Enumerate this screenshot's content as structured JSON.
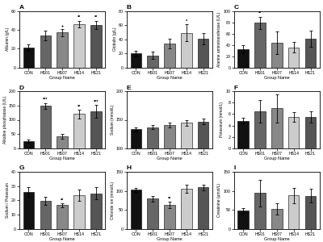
{
  "chart_data": [
    {
      "type": "bar",
      "title": "A",
      "x_label": "Group Name",
      "y_label": "Albumin (g/L)",
      "categories": [
        "CON",
        "HS01",
        "HS07",
        "HS14",
        "HS21"
      ],
      "values": [
        21.0,
        34.0,
        37.0,
        46.0,
        45.0
      ],
      "errors": [
        3.5,
        5.0,
        3.5,
        3.5,
        4.5
      ],
      "colors": [
        "#111111",
        "#666666",
        "#888888",
        "#cccccc",
        "#555555"
      ],
      "ylim": [
        0,
        60
      ],
      "yticks": [
        0,
        20,
        40,
        60
      ],
      "annotations": [
        {
          "category": "HS07",
          "text": "+"
        },
        {
          "category": "HS14",
          "text": "**"
        },
        {
          "category": "HS21",
          "text": "**"
        }
      ]
    },
    {
      "type": "bar",
      "title": "B",
      "x_label": "Group Name",
      "y_label": "Globulin (g/L)",
      "categories": [
        "CON",
        "HS01",
        "HS07",
        "HS14",
        "HS21"
      ],
      "values": [
        20.0,
        17.0,
        34.0,
        49.0,
        41.0
      ],
      "errors": [
        4.0,
        5.0,
        7.0,
        12.0,
        8.0
      ],
      "colors": [
        "#111111",
        "#666666",
        "#888888",
        "#cccccc",
        "#555555"
      ],
      "ylim": [
        0,
        80
      ],
      "yticks": [
        0,
        20,
        40,
        60,
        80
      ],
      "annotations": [
        {
          "category": "HS14",
          "text": "*"
        }
      ]
    },
    {
      "type": "bar",
      "title": "C",
      "x_label": "Group Name",
      "y_label": "Alanine aminotransferase (U/L)",
      "categories": [
        "CON",
        "HS01",
        "HS07",
        "HS14",
        "HS21"
      ],
      "values": [
        33.0,
        79.0,
        44.0,
        36.0,
        51.0
      ],
      "errors": [
        7.0,
        11.0,
        20.0,
        9.0,
        14.0
      ],
      "colors": [
        "#111111",
        "#666666",
        "#888888",
        "#cccccc",
        "#555555"
      ],
      "ylim": [
        0,
        100
      ],
      "yticks": [
        0,
        20,
        40,
        60,
        80,
        100
      ],
      "annotations": [
        {
          "category": "HS01",
          "text": "**"
        }
      ]
    },
    {
      "type": "bar",
      "title": "D",
      "x_label": "Group Name",
      "y_label": "Alkaline phosphatase (U/L)",
      "categories": [
        "CON",
        "HS01",
        "HS07",
        "HS14",
        "HS21"
      ],
      "values": [
        25.0,
        149.0,
        42.0,
        120.0,
        130.0
      ],
      "errors": [
        5.0,
        10.0,
        8.0,
        16.0,
        22.0
      ],
      "colors": [
        "#111111",
        "#666666",
        "#888888",
        "#cccccc",
        "#555555"
      ],
      "ylim": [
        0,
        200
      ],
      "yticks": [
        0,
        50,
        100,
        150,
        200
      ],
      "annotations": [
        {
          "category": "HS01",
          "text": "***"
        },
        {
          "category": "HS14",
          "text": "**"
        },
        {
          "category": "HS21",
          "text": "***"
        }
      ]
    },
    {
      "type": "bar",
      "title": "E",
      "x_label": "Group Name",
      "y_label": "Sodium (mmol/L)",
      "categories": [
        "CON",
        "HS01",
        "HS07",
        "HS14",
        "HS21"
      ],
      "values": [
        133.0,
        137.0,
        141.0,
        145.0,
        147.0
      ],
      "errors": [
        3.0,
        4.0,
        4.0,
        5.0,
        5.0
      ],
      "colors": [
        "#111111",
        "#666666",
        "#888888",
        "#cccccc",
        "#555555"
      ],
      "ylim": [
        100,
        200
      ],
      "yticks": [
        100,
        150,
        200
      ]
    },
    {
      "type": "bar",
      "title": "F",
      "x_label": "Group Name",
      "y_label": "Potassium (mmol/L)",
      "categories": [
        "CON",
        "HS01",
        "HS07",
        "HS14",
        "HS21"
      ],
      "values": [
        4.8,
        6.5,
        7.0,
        5.5,
        5.5
      ],
      "errors": [
        0.5,
        2.0,
        2.5,
        0.8,
        1.0
      ],
      "colors": [
        "#111111",
        "#666666",
        "#888888",
        "#cccccc",
        "#555555"
      ],
      "ylim": [
        0,
        10
      ],
      "yticks": [
        0,
        2,
        4,
        6,
        8,
        10
      ]
    },
    {
      "type": "bar",
      "title": "G",
      "x_label": "Group Name",
      "y_label": "Sodium / Potassium",
      "categories": [
        "CON",
        "HS01",
        "HS07",
        "HS14",
        "HS21"
      ],
      "values": [
        26.0,
        19.5,
        16.5,
        23.5,
        25.0
      ],
      "errors": [
        3.5,
        3.0,
        1.5,
        4.0,
        4.5
      ],
      "colors": [
        "#111111",
        "#666666",
        "#888888",
        "#cccccc",
        "#555555"
      ],
      "ylim": [
        0,
        40
      ],
      "yticks": [
        0,
        10,
        20,
        30,
        40
      ],
      "annotations": [
        {
          "category": "HS07",
          "text": "**"
        }
      ]
    },
    {
      "type": "bar",
      "title": "H",
      "x_label": "Group Name",
      "y_label": "Chloride ion (mmol/L)",
      "categories": [
        "CON",
        "HS01",
        "HS07",
        "HS14",
        "HS21"
      ],
      "values": [
        103.0,
        79.0,
        63.0,
        106.0,
        109.0
      ],
      "errors": [
        5.0,
        8.0,
        8.0,
        10.0,
        8.0
      ],
      "colors": [
        "#111111",
        "#666666",
        "#888888",
        "#cccccc",
        "#555555"
      ],
      "ylim": [
        0,
        150
      ],
      "yticks": [
        0,
        50,
        100,
        150
      ],
      "annotations": [
        {
          "category": "HS07",
          "text": "**"
        }
      ]
    },
    {
      "type": "bar",
      "title": "I",
      "x_label": "Group Name",
      "y_label": "Creatinine (μmol/L)",
      "categories": [
        "CON",
        "HS01",
        "HS07",
        "HS14",
        "HS21"
      ],
      "values": [
        47.0,
        94.0,
        52.0,
        88.0,
        87.0
      ],
      "errors": [
        8.0,
        35.0,
        15.0,
        20.0,
        18.0
      ],
      "colors": [
        "#111111",
        "#666666",
        "#888888",
        "#cccccc",
        "#555555"
      ],
      "ylim": [
        0,
        150
      ],
      "yticks": [
        0,
        50,
        100,
        150
      ]
    }
  ]
}
